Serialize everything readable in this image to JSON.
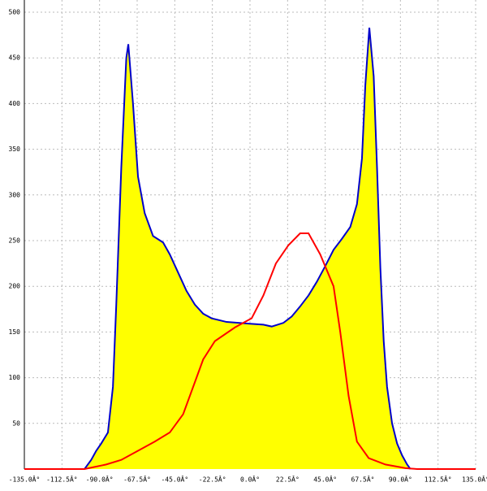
{
  "chart_data": {
    "type": "area",
    "xlim": [
      -135,
      135
    ],
    "ylim": [
      0,
      500
    ],
    "xticks": [
      {
        "value": -135,
        "label": "-135.0Â°"
      },
      {
        "value": -112.5,
        "label": "-112.5Â°"
      },
      {
        "value": -90,
        "label": "-90.0Â°"
      },
      {
        "value": -67.5,
        "label": "-67.5Â°"
      },
      {
        "value": -45,
        "label": "-45.0Â°"
      },
      {
        "value": -22.5,
        "label": "-22.5Â°"
      },
      {
        "value": 0,
        "label": "0.0Â°"
      },
      {
        "value": 22.5,
        "label": "22.5Â°"
      },
      {
        "value": 45,
        "label": "45.0Â°"
      },
      {
        "value": 67.5,
        "label": "67.5Â°"
      },
      {
        "value": 90,
        "label": "90.0Â°"
      },
      {
        "value": 112.5,
        "label": "112.5Â°"
      },
      {
        "value": 135,
        "label": "135.0Â°"
      }
    ],
    "yticks": [
      50,
      100,
      150,
      200,
      250,
      300,
      350,
      400,
      450,
      500
    ],
    "grid": true,
    "series": [
      {
        "type": "area",
        "color": "#0000cc",
        "fill": "#ffff00",
        "x": [
          -99,
          -95,
          -92,
          -89,
          -85,
          -82,
          -80,
          -77,
          -74,
          -72.8,
          -70,
          -67,
          -63,
          -58,
          -52,
          -48,
          -43,
          -38,
          -33,
          -28,
          -23,
          -14,
          0,
          8,
          13,
          20,
          25,
          30,
          35,
          40,
          45,
          50,
          55,
          60,
          64,
          67,
          69,
          71.4,
          74,
          76,
          78,
          80,
          82,
          85,
          88,
          91,
          94,
          96
        ],
        "values": [
          0,
          10,
          20,
          28,
          40,
          90,
          180,
          330,
          450,
          465,
          400,
          320,
          280,
          255,
          248,
          235,
          215,
          195,
          180,
          170,
          165,
          161,
          159,
          158,
          156,
          160,
          167,
          178,
          190,
          205,
          222,
          240,
          252,
          265,
          290,
          340,
          420,
          483,
          430,
          330,
          220,
          140,
          90,
          50,
          28,
          15,
          5,
          0
        ]
      },
      {
        "type": "line",
        "color": "#ff0000",
        "x": [
          -135,
          -99,
          -86,
          -77,
          -67,
          -57,
          -48,
          -40,
          -33,
          -28,
          -21,
          -9,
          1,
          8,
          15.5,
          23,
          30,
          35,
          42,
          50,
          54,
          59,
          64,
          71,
          81,
          93,
          100,
          135
        ],
        "values": [
          0,
          0,
          5,
          10,
          20,
          30,
          40,
          60,
          95,
          120,
          140,
          155,
          165,
          190,
          225,
          245,
          258,
          258,
          235,
          200,
          150,
          80,
          30,
          12,
          5,
          1,
          0,
          0
        ]
      }
    ]
  }
}
